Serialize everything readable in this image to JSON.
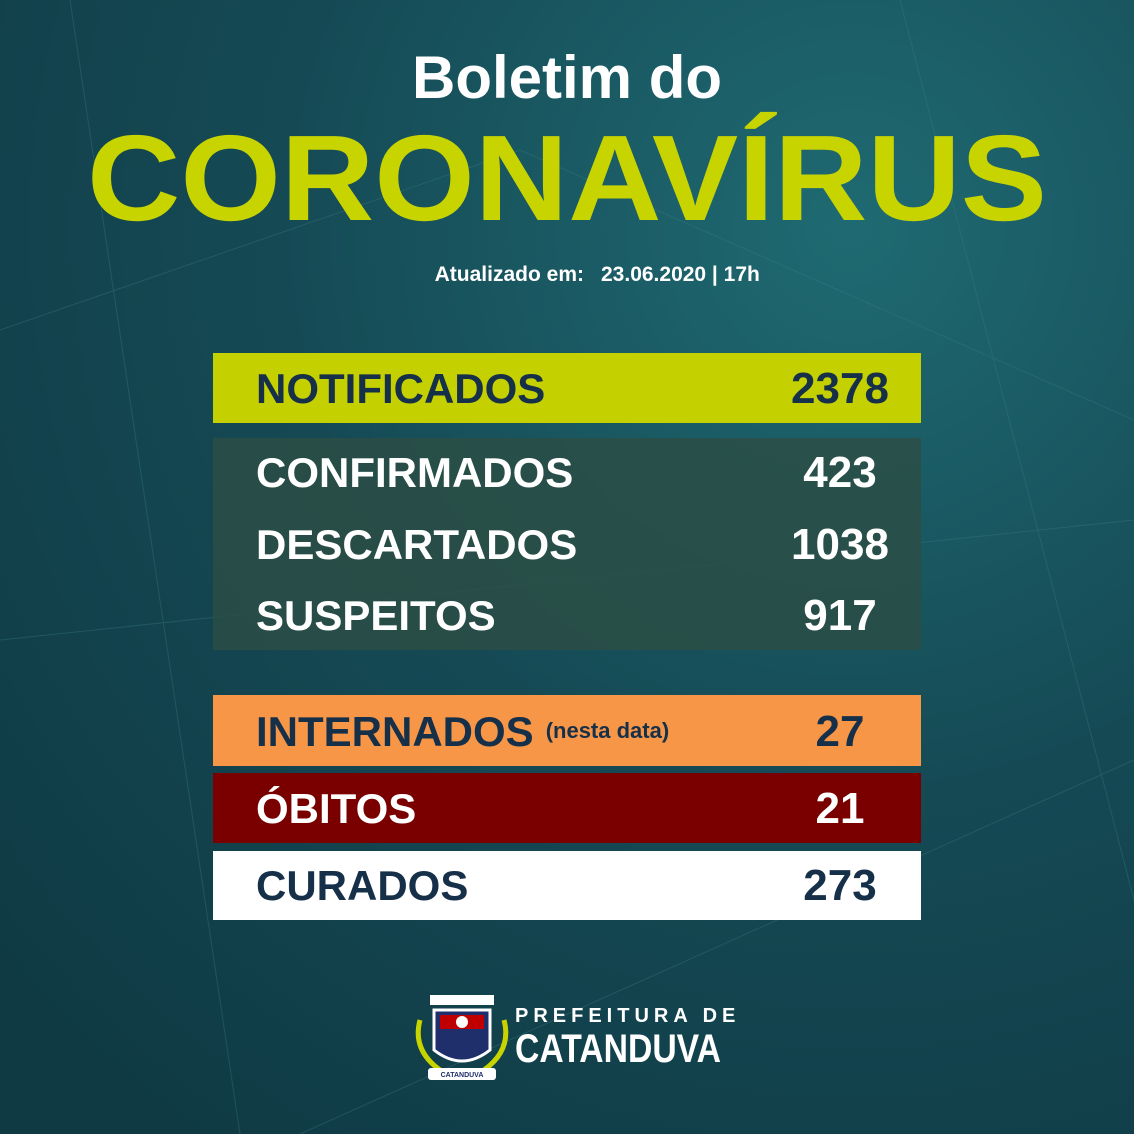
{
  "header": {
    "title": "Boletim do",
    "subtitle": "CORONAVÍRUS",
    "updated_label": "Atualizado em:",
    "updated_value": "23.06.2020 | 17h"
  },
  "table": {
    "rows": [
      {
        "label": "NOTIFICADOS",
        "value": 2378
      },
      {
        "label": "CONFIRMADOS",
        "value": 423
      },
      {
        "label": "DESCARTADOS",
        "value": 1038
      },
      {
        "label": "SUSPEITOS",
        "value": 917
      },
      {
        "label": "INTERNADOS",
        "note": "(nesta data)",
        "value": 27
      },
      {
        "label": "ÓBITOS",
        "value": 21
      },
      {
        "label": "CURADOS",
        "value": 273
      }
    ]
  },
  "footer": {
    "line1": "PREFEITURA DE",
    "line2": "CATANDUVA",
    "crest_label": "CATANDUVA"
  }
}
